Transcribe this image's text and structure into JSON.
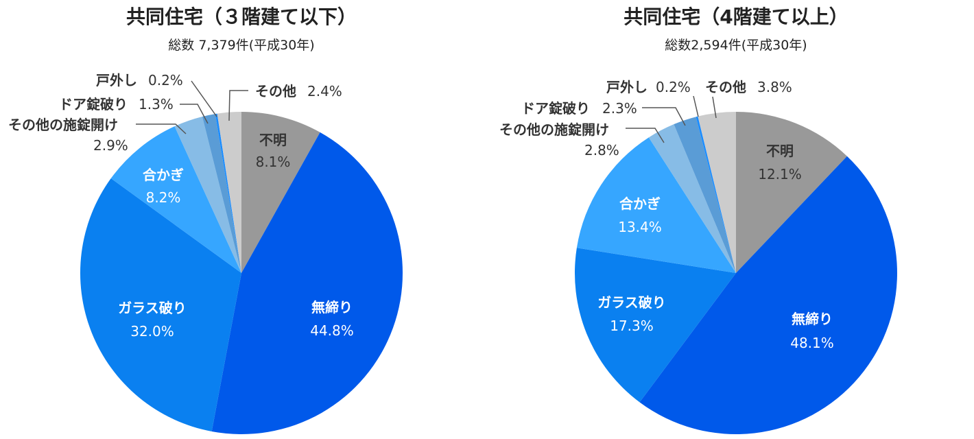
{
  "chart_data": [
    {
      "type": "pie",
      "title": "共同住宅（３階建て以下）",
      "subtitle": "総数 7,379件(平成30年)",
      "slices": [
        {
          "label": "不明",
          "value": 8.1,
          "value_label": "8.1%",
          "color": "#999999",
          "text_color": "#333333"
        },
        {
          "label": "無締り",
          "value": 44.8,
          "value_label": "44.8%",
          "color": "#0059ea",
          "text_color": "#ffffff"
        },
        {
          "label": "ガラス破り",
          "value": 32.0,
          "value_label": "32.0%",
          "color": "#0a80f0",
          "text_color": "#ffffff"
        },
        {
          "label": "合かぎ",
          "value": 8.2,
          "value_label": "8.2%",
          "color": "#36a6ff",
          "text_color": "#ffffff"
        },
        {
          "label": "その他の施錠開け",
          "value": 2.9,
          "value_label": "2.9%",
          "color": "#87bce6",
          "text_color": "#333333"
        },
        {
          "label": "ドア錠破り",
          "value": 1.3,
          "value_label": "1.3%",
          "color": "#5a9cd6",
          "text_color": "#333333"
        },
        {
          "label": "戸外し",
          "value": 0.2,
          "value_label": "0.2%",
          "color": "#1a8cff",
          "text_color": "#333333"
        },
        {
          "label": "その他",
          "value": 2.4,
          "value_label": "2.4%",
          "color": "#cccccc",
          "text_color": "#333333"
        }
      ]
    },
    {
      "type": "pie",
      "title": "共同住宅（4階建て以上）",
      "subtitle": "総数2,594件(平成30年)",
      "slices": [
        {
          "label": "不明",
          "value": 12.1,
          "value_label": "12.1%",
          "color": "#999999",
          "text_color": "#333333"
        },
        {
          "label": "無締り",
          "value": 48.1,
          "value_label": "48.1%",
          "color": "#0059ea",
          "text_color": "#ffffff"
        },
        {
          "label": "ガラス破り",
          "value": 17.3,
          "value_label": "17.3%",
          "color": "#0a80f0",
          "text_color": "#ffffff"
        },
        {
          "label": "合かぎ",
          "value": 13.4,
          "value_label": "13.4%",
          "color": "#36a6ff",
          "text_color": "#ffffff"
        },
        {
          "label": "その他の施錠開け",
          "value": 2.8,
          "value_label": "2.8%",
          "color": "#87bce6",
          "text_color": "#333333"
        },
        {
          "label": "ドア錠破り",
          "value": 2.3,
          "value_label": "2.3%",
          "color": "#5a9cd6",
          "text_color": "#333333"
        },
        {
          "label": "戸外し",
          "value": 0.2,
          "value_label": "0.2%",
          "color": "#1a8cff",
          "text_color": "#333333"
        },
        {
          "label": "その他",
          "value": 3.8,
          "value_label": "3.8%",
          "color": "#cccccc",
          "text_color": "#333333"
        }
      ]
    }
  ]
}
